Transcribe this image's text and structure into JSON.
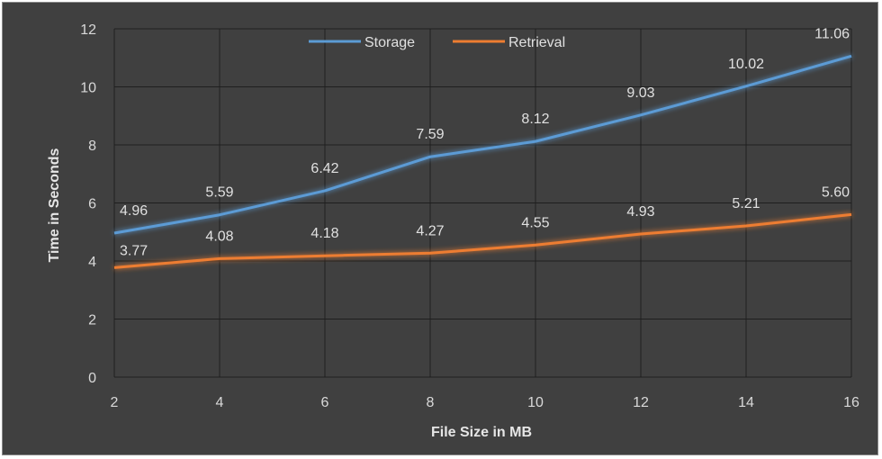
{
  "chart_data": {
    "type": "line",
    "title": "",
    "xlabel": "File Size in MB",
    "ylabel": "Time in Seconds",
    "x": [
      2,
      4,
      6,
      8,
      10,
      12,
      14,
      16
    ],
    "xlim": [
      2,
      16
    ],
    "ylim": [
      0,
      12
    ],
    "y_ticks": [
      0,
      2,
      4,
      6,
      8,
      10,
      12
    ],
    "grid": true,
    "legend_position": "top",
    "background": "#404040",
    "series": [
      {
        "name": "Storage",
        "color": "#5b9bd5",
        "values": [
          4.96,
          5.59,
          6.42,
          7.59,
          8.12,
          9.03,
          10.02,
          11.06
        ],
        "labels": [
          "4.96",
          "5.59",
          "6.42",
          "7.59",
          "8.12",
          "9.03",
          "10.02",
          "11.06"
        ]
      },
      {
        "name": "Retrieval",
        "color": "#ed7d31",
        "values": [
          3.77,
          4.08,
          4.18,
          4.27,
          4.55,
          4.93,
          5.21,
          5.6
        ],
        "labels": [
          "3.77",
          "4.08",
          "4.18",
          "4.27",
          "4.55",
          "4.93",
          "5.21",
          "5.60"
        ]
      }
    ]
  }
}
